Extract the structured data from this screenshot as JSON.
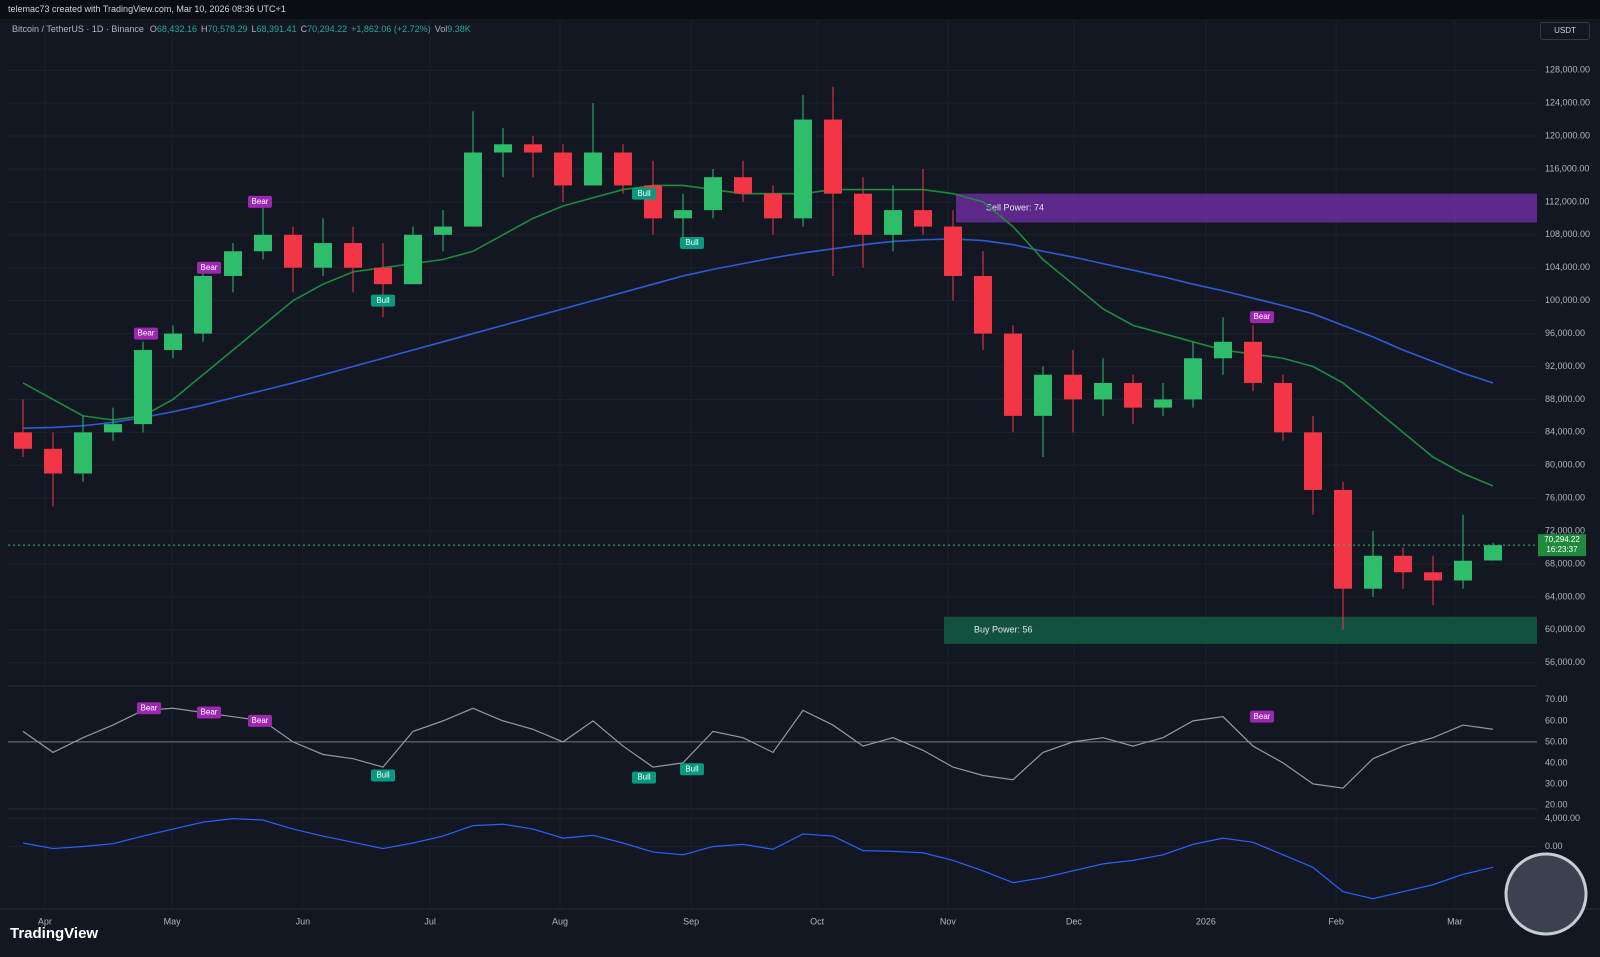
{
  "header": {
    "author": "telemac73 created with TradingView.com, Mar 10, 2026 08:36 UTC+1",
    "ohlc": [
      {
        "key": "O",
        "value": "68,432.16"
      },
      {
        "key": "H",
        "value": "70,578.29"
      },
      {
        "key": "L",
        "value": "68,391.41"
      },
      {
        "key": "C",
        "value": "70,294.22"
      }
    ],
    "change": "+1,862.06 (+2.72%)",
    "vol_key": "Vol",
    "vol": "9.38K",
    "brand": "TradingView"
  },
  "chart_data": {
    "type": "candlestick",
    "title": "Bitcoin / TetherUS · 1D · Binance",
    "currency": "USDT",
    "categories": [
      null,
      null,
      null,
      null,
      null,
      null,
      null,
      null,
      null,
      null,
      null,
      null,
      null,
      null,
      null,
      null,
      null,
      null,
      null,
      null,
      null,
      null,
      null,
      null,
      null,
      null,
      null,
      null,
      null,
      null,
      null,
      null,
      null,
      null,
      null,
      null,
      null,
      null,
      null,
      null,
      null,
      null,
      null,
      null,
      null,
      null,
      null,
      null,
      null,
      null
    ],
    "xticks": [
      {
        "value": 0.73,
        "label": "Apr"
      },
      {
        "value": 4.97,
        "label": "May"
      },
      {
        "value": 9.33,
        "label": "Jun"
      },
      {
        "value": 13.57,
        "label": "Jul"
      },
      {
        "value": 17.9,
        "label": "Aug"
      },
      {
        "value": 22.27,
        "label": "Sep"
      },
      {
        "value": 26.47,
        "label": "Oct"
      },
      {
        "value": 30.83,
        "label": "Nov"
      },
      {
        "value": 35.03,
        "label": "Dec"
      },
      {
        "value": 39.43,
        "label": "2026"
      },
      {
        "value": 43.77,
        "label": "Feb"
      },
      {
        "value": 47.73,
        "label": "Mar"
      }
    ],
    "open": [
      84000,
      82000,
      79000,
      84000,
      85000,
      94000,
      96000,
      103000,
      106000,
      108000,
      104000,
      107000,
      104000,
      102000,
      108000,
      109000,
      118000,
      119000,
      118000,
      114000,
      118000,
      114000,
      110000,
      111000,
      115000,
      113000,
      110000,
      122000,
      113000,
      108000,
      111000,
      109000,
      103000,
      96000,
      86000,
      91000,
      88000,
      90000,
      87000,
      88000,
      93000,
      95000,
      90000,
      84000,
      77000,
      65000,
      69000,
      67000,
      66000,
      68432.16
    ],
    "high": [
      88000,
      84000,
      86000,
      87000,
      95000,
      97000,
      104000,
      107000,
      112000,
      109000,
      110000,
      109000,
      107000,
      109000,
      111000,
      123000,
      121000,
      120000,
      119000,
      124000,
      119000,
      117000,
      113000,
      116000,
      117000,
      114000,
      125000,
      126000,
      115000,
      114000,
      116000,
      111000,
      106000,
      97000,
      92000,
      94000,
      93000,
      91000,
      90000,
      95000,
      98000,
      97000,
      91000,
      86000,
      78000,
      72000,
      70000,
      69000,
      74000,
      70578.29
    ],
    "low": [
      81000,
      75000,
      78000,
      83000,
      84000,
      93000,
      95000,
      101000,
      105000,
      101000,
      103000,
      101000,
      98000,
      102000,
      106000,
      109000,
      115000,
      115000,
      112000,
      114000,
      113000,
      108000,
      107000,
      110000,
      112000,
      108000,
      109000,
      103000,
      104000,
      106000,
      108000,
      100000,
      94000,
      84000,
      81000,
      84000,
      86000,
      85000,
      86000,
      87000,
      91000,
      89000,
      83000,
      74000,
      60000,
      64000,
      65000,
      63000,
      65000,
      68391.41
    ],
    "close": [
      82000,
      79000,
      84000,
      85000,
      94000,
      96000,
      103000,
      106000,
      108000,
      104000,
      107000,
      104000,
      102000,
      108000,
      109000,
      118000,
      119000,
      118000,
      114000,
      118000,
      114000,
      110000,
      111000,
      115000,
      113000,
      110000,
      122000,
      113000,
      108000,
      111000,
      109000,
      103000,
      96000,
      86000,
      91000,
      88000,
      90000,
      87000,
      88000,
      93000,
      95000,
      90000,
      84000,
      77000,
      65000,
      69000,
      67000,
      66000,
      68400,
      70294.22
    ],
    "up_color": "#2ebd6b",
    "down_color": "#f23645",
    "lines": [
      {
        "color": "#2f5bd8",
        "values": [
          84500,
          84600,
          84800,
          85200,
          85800,
          86500,
          87300,
          88200,
          89100,
          90000,
          91000,
          92000,
          93000,
          94000,
          95000,
          96000,
          97000,
          98000,
          99000,
          100000,
          101000,
          102000,
          103000,
          103800,
          104500,
          105200,
          105800,
          106300,
          106800,
          107200,
          107400,
          107500,
          107300,
          106800,
          106000,
          105300,
          104500,
          103700,
          102900,
          102000,
          101200,
          100300,
          99400,
          98400,
          97000,
          95600,
          94000,
          92600,
          91200,
          90000
        ]
      },
      {
        "color": "#1f8a3c",
        "values": [
          90000,
          88000,
          86000,
          85500,
          86000,
          88000,
          91000,
          94000,
          97000,
          100000,
          102000,
          103500,
          104000,
          104500,
          105000,
          106000,
          108000,
          110000,
          111500,
          112500,
          113500,
          114000,
          114000,
          113500,
          113000,
          113000,
          113000,
          113500,
          113500,
          113500,
          113500,
          113000,
          112000,
          109000,
          105000,
          102000,
          99000,
          97000,
          96000,
          95000,
          94000,
          93500,
          93000,
          92000,
          90000,
          87000,
          84000,
          81000,
          79000,
          77500
        ]
      }
    ],
    "ylim": [
      53300,
      134100
    ],
    "yticks": [
      {
        "value": 56000,
        "label": "56,000.00"
      },
      {
        "value": 60000,
        "label": "60,000.00"
      },
      {
        "value": 64000,
        "label": "64,000.00"
      },
      {
        "value": 68000,
        "label": "68,000.00"
      },
      {
        "value": 72000,
        "label": "72,000.00"
      },
      {
        "value": 76000,
        "label": "76,000.00"
      },
      {
        "value": 80000,
        "label": "80,000.00"
      },
      {
        "value": 84000,
        "label": "84,000.00"
      },
      {
        "value": 88000,
        "label": "88,000.00"
      },
      {
        "value": 92000,
        "label": "92,000.00"
      },
      {
        "value": 96000,
        "label": "96,000.00"
      },
      {
        "value": 100000,
        "label": "100,000.00"
      },
      {
        "value": 104000,
        "label": "104,000.00"
      },
      {
        "value": 108000,
        "label": "108,000.00"
      },
      {
        "value": 112000,
        "label": "112,000.00"
      },
      {
        "value": 116000,
        "label": "116,000.00"
      },
      {
        "value": 120000,
        "label": "120,000.00"
      },
      {
        "value": 124000,
        "label": "124,000.00"
      },
      {
        "value": 128000,
        "label": "128,000.00"
      }
    ],
    "price_tag": {
      "value": 70294.22,
      "label": "70,294.22",
      "countdown": "16:23:37"
    },
    "zones": [
      {
        "label": "Sell Power: 74",
        "range": [
          109500,
          113000
        ],
        "start": 31.1,
        "color": "#6a2d9e"
      },
      {
        "label": "Buy Power: 56",
        "range": [
          58300,
          61600
        ],
        "start": 30.7,
        "color": "#145c44"
      }
    ],
    "annotations": [
      {
        "text": "Bear",
        "x": 4.1,
        "y": 96000
      },
      {
        "text": "Bear",
        "x": 6.2,
        "y": 104000
      },
      {
        "text": "Bear",
        "x": 7.9,
        "y": 112000
      },
      {
        "text": "Bull",
        "x": 12,
        "y": 100000
      },
      {
        "text": "Bull",
        "x": 20.7,
        "y": 113000
      },
      {
        "text": "Bull",
        "x": 22.3,
        "y": 107000
      },
      {
        "text": "Bear",
        "x": 41.3,
        "y": 98000
      }
    ],
    "rsi": {
      "ylim": [
        19,
        74.7
      ],
      "midline": 50,
      "color": "#9598a1",
      "yticks": [
        {
          "value": 20,
          "label": "20.00"
        },
        {
          "value": 30,
          "label": "30.00"
        },
        {
          "value": 40,
          "label": "40.00"
        },
        {
          "value": 50,
          "label": "50.00"
        },
        {
          "value": 60,
          "label": "60.00"
        },
        {
          "value": 70,
          "label": "70.00"
        }
      ],
      "values": [
        55,
        45,
        52,
        58,
        65,
        66,
        64,
        62,
        60,
        50,
        44,
        42,
        38,
        55,
        60,
        66,
        60,
        56,
        50,
        60,
        48,
        38,
        40,
        55,
        52,
        45,
        65,
        58,
        48,
        52,
        46,
        38,
        34,
        32,
        45,
        50,
        52,
        48,
        52,
        60,
        62,
        48,
        40,
        30,
        28,
        42,
        48,
        52,
        58,
        56
      ],
      "annotations": [
        {
          "text": "Bear",
          "x": 4.2,
          "y": 66
        },
        {
          "text": "Bear",
          "x": 6.2,
          "y": 64
        },
        {
          "text": "Bear",
          "x": 7.9,
          "y": 60
        },
        {
          "text": "Bull",
          "x": 12,
          "y": 34
        },
        {
          "text": "Bull",
          "x": 20.7,
          "y": 33
        },
        {
          "text": "Bull",
          "x": 22.3,
          "y": 37
        },
        {
          "text": "Bear",
          "x": 41.3,
          "y": 62
        }
      ]
    },
    "macd": {
      "ylim": [
        -8700,
        5100
      ],
      "color": "#2962ff",
      "yticks": [
        {
          "value": 0,
          "label": "0.00"
        },
        {
          "value": 4000,
          "label": "4,000.00"
        }
      ],
      "values": [
        500,
        -300,
        0,
        400,
        1500,
        2500,
        3500,
        4000,
        3800,
        2500,
        1500,
        600,
        -300,
        500,
        1500,
        3000,
        3200,
        2500,
        1200,
        1600,
        500,
        -800,
        -1200,
        0,
        300,
        -400,
        1800,
        1500,
        -600,
        -700,
        -900,
        -2000,
        -3500,
        -5200,
        -4500,
        -3500,
        -2500,
        -2000,
        -1200,
        300,
        1200,
        600,
        -1200,
        -3000,
        -6500,
        -7500,
        -6500,
        -5500,
        -4000,
        -3000
      ]
    }
  }
}
